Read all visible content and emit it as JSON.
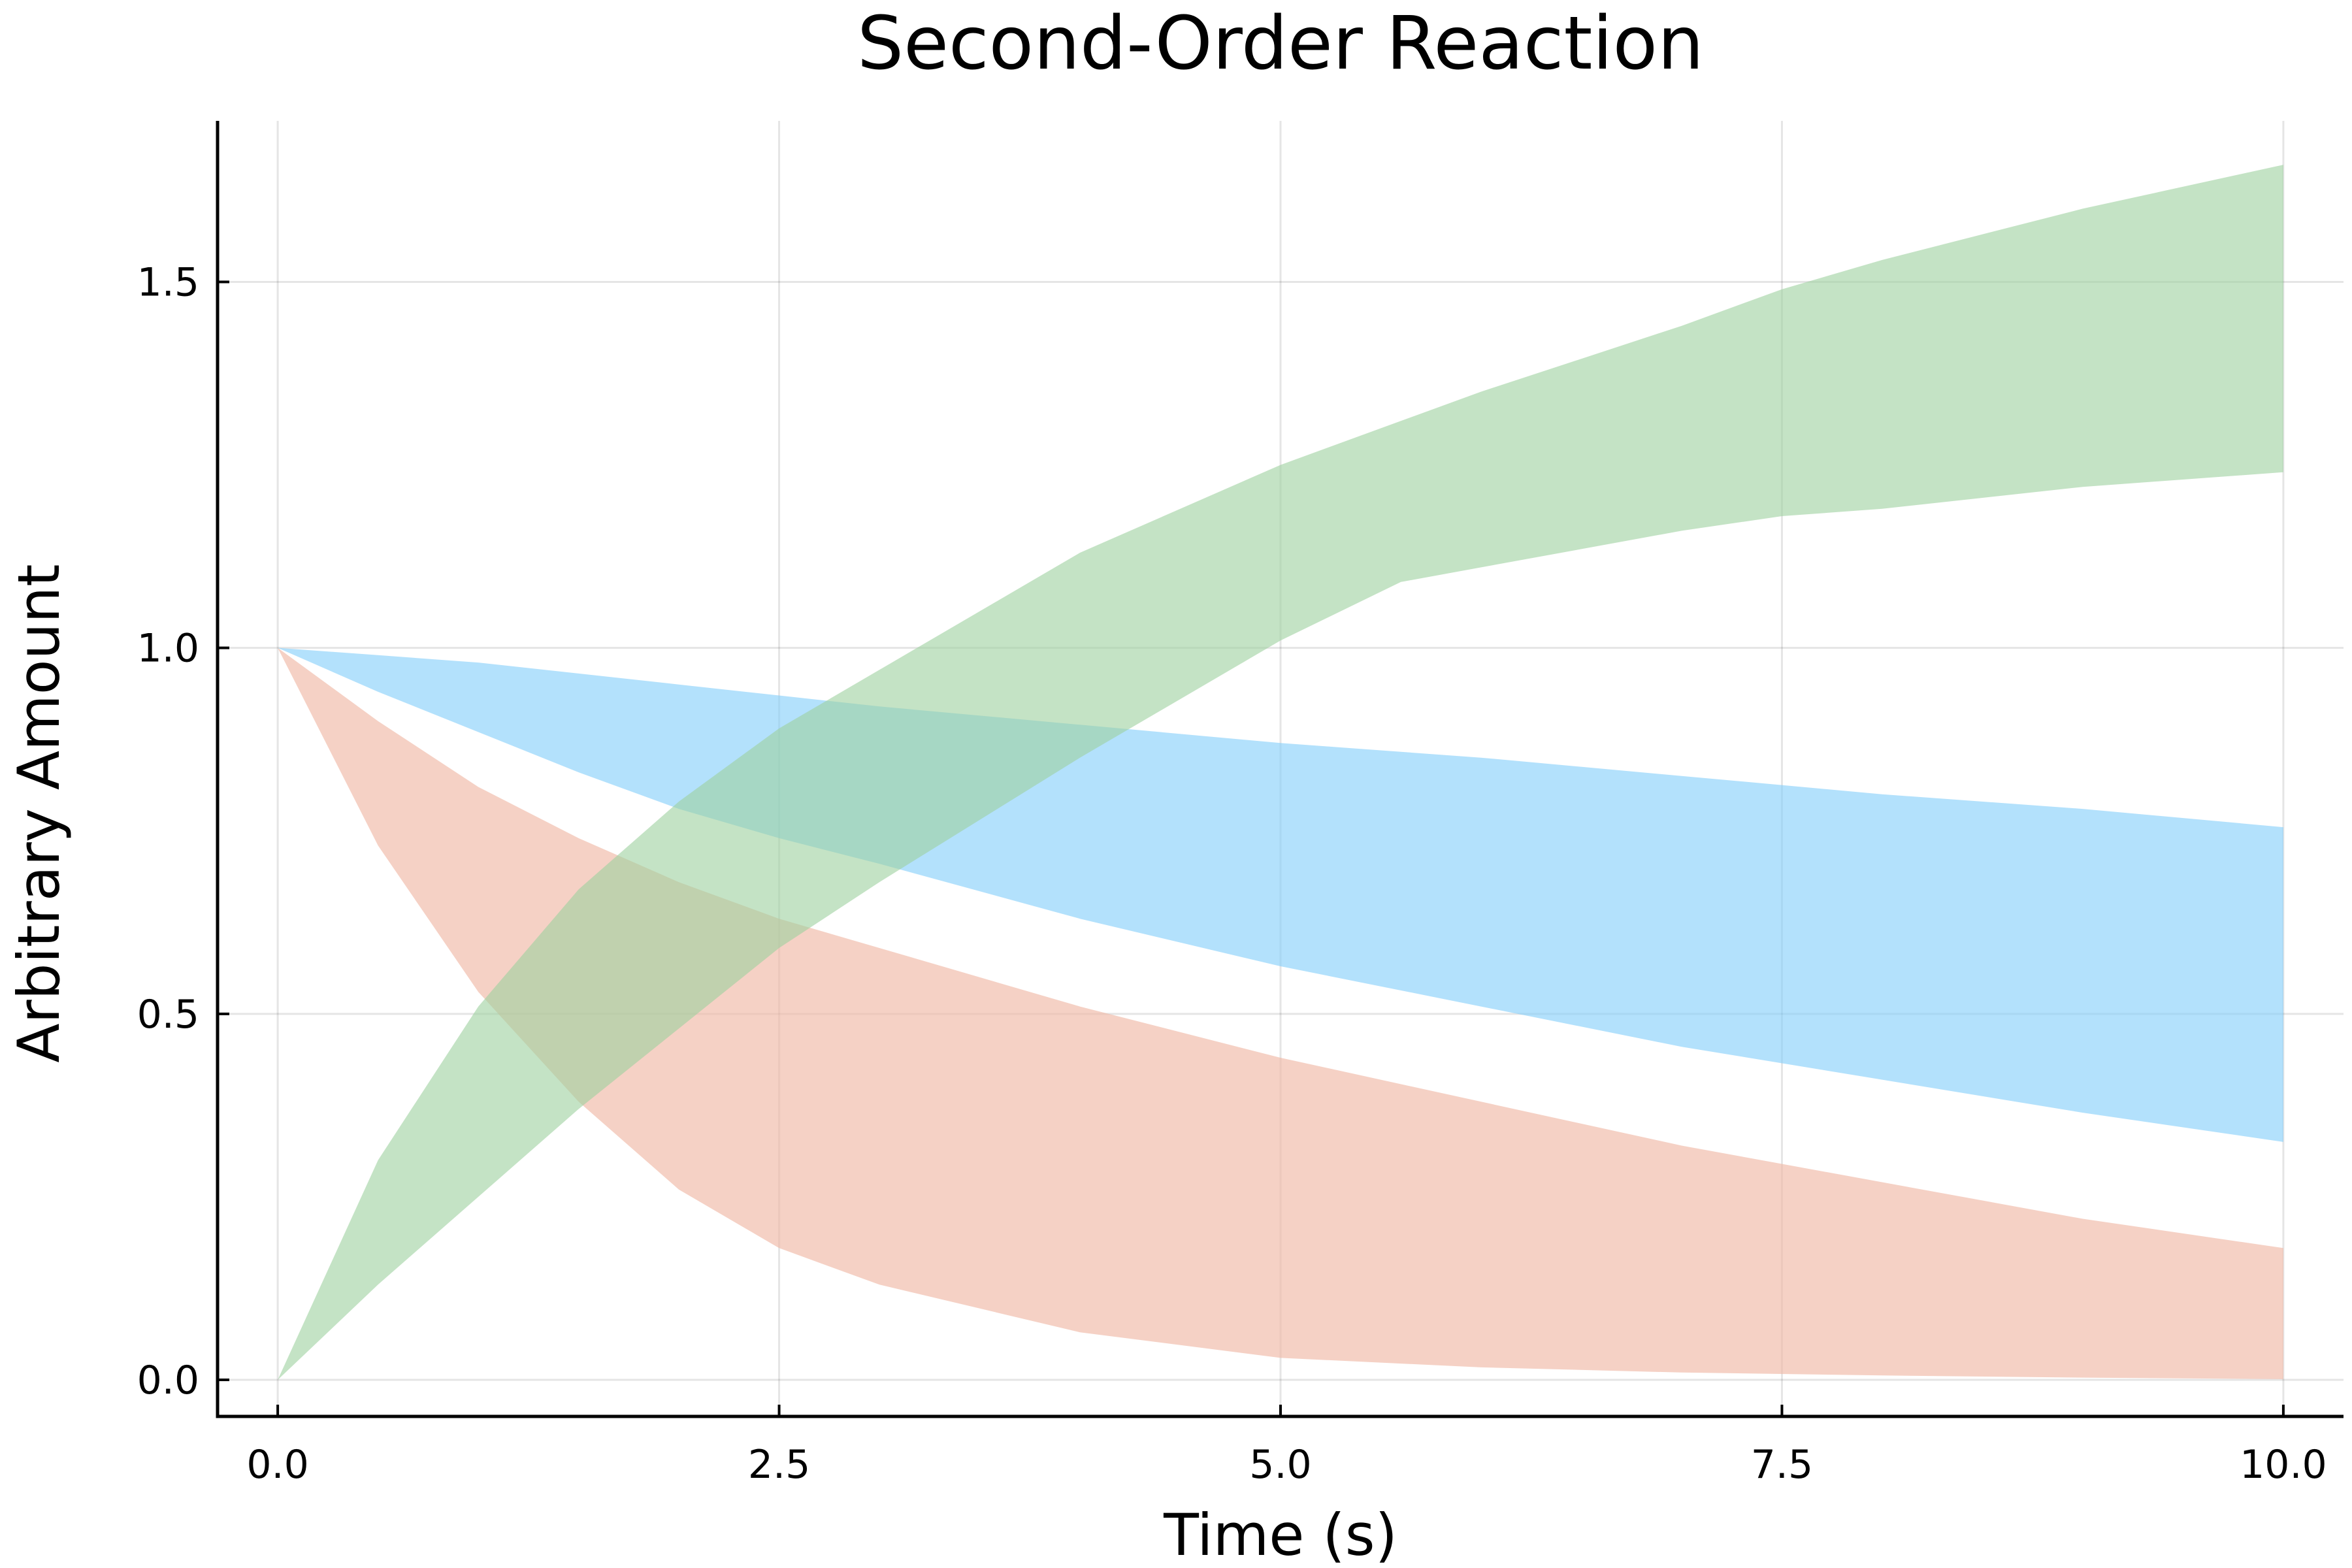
{
  "chart_data": {
    "type": "area",
    "title": "Second-Order Reaction",
    "xlabel": "Time (s)",
    "ylabel": "Arbitrary Amount",
    "xlim": [
      -0.3,
      10.3
    ],
    "ylim": [
      -0.05,
      1.72
    ],
    "xticks": [
      0.0,
      2.5,
      5.0,
      7.5,
      10.0
    ],
    "xtick_labels": [
      "0.0",
      "2.5",
      "5.0",
      "7.5",
      "10.0"
    ],
    "yticks": [
      0.0,
      0.5,
      1.0,
      1.5
    ],
    "ytick_labels": [
      "0.0",
      "0.5",
      "1.0",
      "1.5"
    ],
    "grid": true,
    "legend": "none",
    "series": [
      {
        "color": "#f0b8a6",
        "opacity": 0.65,
        "x": [
          0,
          0.5,
          1,
          1.5,
          2,
          2.5,
          3,
          4,
          5,
          6,
          7,
          8,
          9,
          10
        ],
        "upper": [
          1.0,
          0.9,
          0.81,
          0.74,
          0.68,
          0.63,
          0.59,
          0.51,
          0.44,
          0.38,
          0.32,
          0.27,
          0.22,
          0.18
        ],
        "lower": [
          1.0,
          0.73,
          0.53,
          0.38,
          0.26,
          0.18,
          0.13,
          0.065,
          0.03,
          0.017,
          0.01,
          0.006,
          0.003,
          0.001
        ]
      },
      {
        "color": "#80cdfa",
        "opacity": 0.6,
        "x": [
          0,
          0.5,
          1,
          1.5,
          2,
          2.5,
          3,
          4,
          5,
          6,
          7,
          8,
          9,
          10
        ],
        "upper": [
          1.0,
          0.99,
          0.98,
          0.965,
          0.95,
          0.935,
          0.92,
          0.895,
          0.87,
          0.85,
          0.825,
          0.8,
          0.78,
          0.755
        ],
        "lower": [
          1.0,
          0.94,
          0.885,
          0.83,
          0.78,
          0.74,
          0.705,
          0.63,
          0.565,
          0.51,
          0.455,
          0.41,
          0.365,
          0.325
        ]
      },
      {
        "color": "#9dd09f",
        "opacity": 0.6,
        "x": [
          0,
          0.5,
          1,
          1.5,
          2,
          2.5,
          3,
          4,
          5,
          5.6,
          6,
          7,
          7.5,
          8,
          9,
          10
        ],
        "upper": [
          0.0,
          0.3,
          0.51,
          0.67,
          0.79,
          0.89,
          0.97,
          1.13,
          1.25,
          1.31,
          1.35,
          1.44,
          1.49,
          1.53,
          1.6,
          1.66
        ],
        "lower": [
          0.0,
          0.13,
          0.25,
          0.37,
          0.48,
          0.59,
          0.68,
          0.85,
          1.01,
          1.09,
          1.11,
          1.16,
          1.18,
          1.19,
          1.22,
          1.24
        ]
      }
    ]
  }
}
